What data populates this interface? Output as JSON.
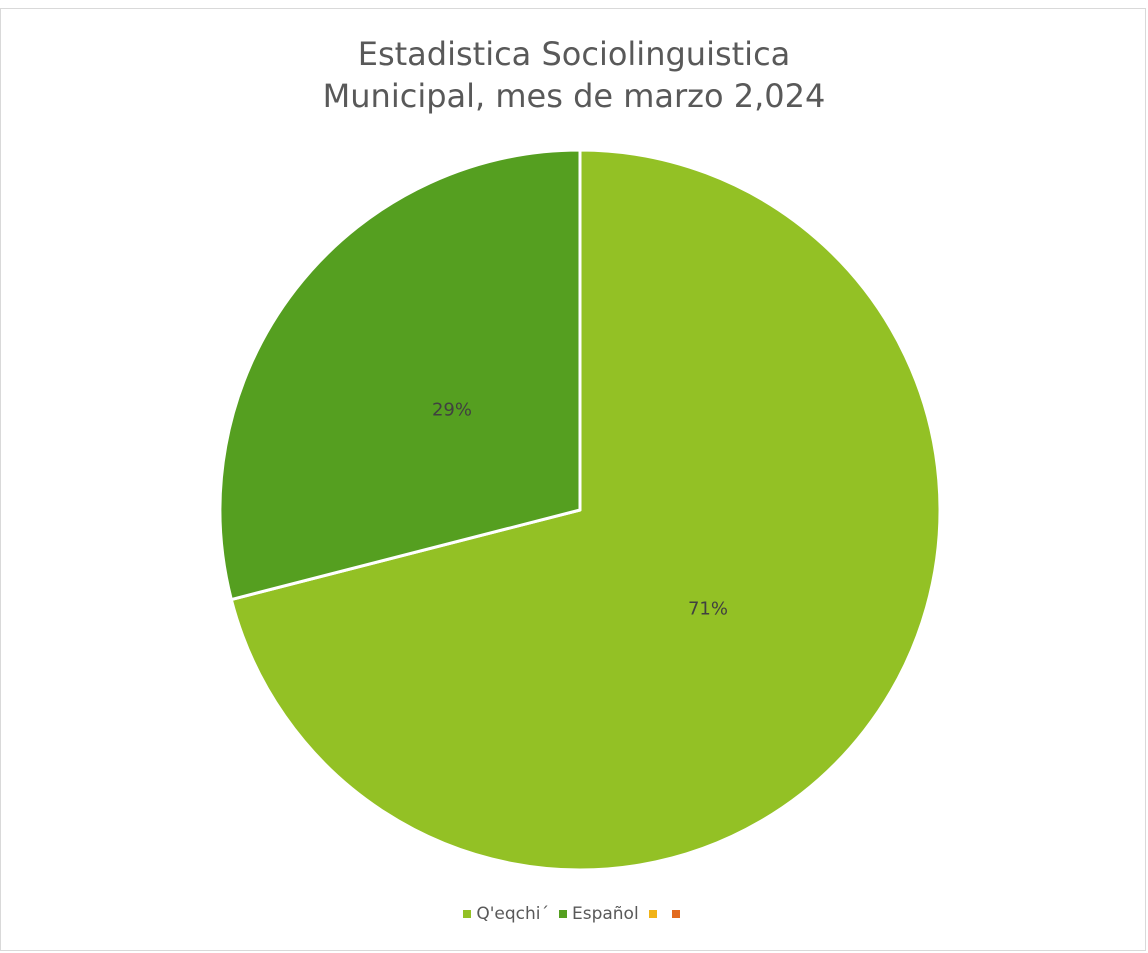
{
  "chart_data": {
    "type": "pie",
    "title_lines": [
      "Estadistica Sociolinguistica",
      "Municipal, mes de marzo 2,024"
    ],
    "slices": [
      {
        "label": "Q'eqchi´",
        "value": 71,
        "display": "71%",
        "color": "#93c125"
      },
      {
        "label": "Español",
        "value": 29,
        "display": "29%",
        "color": "#559f20"
      }
    ],
    "legend": [
      {
        "label": "Q'eqchi´",
        "color": "#93c125"
      },
      {
        "label": "Español",
        "color": "#559f20"
      },
      {
        "label": "",
        "color": "#f1b318"
      },
      {
        "label": "",
        "color": "#e26a1f"
      }
    ],
    "legend_position": "bottom"
  }
}
